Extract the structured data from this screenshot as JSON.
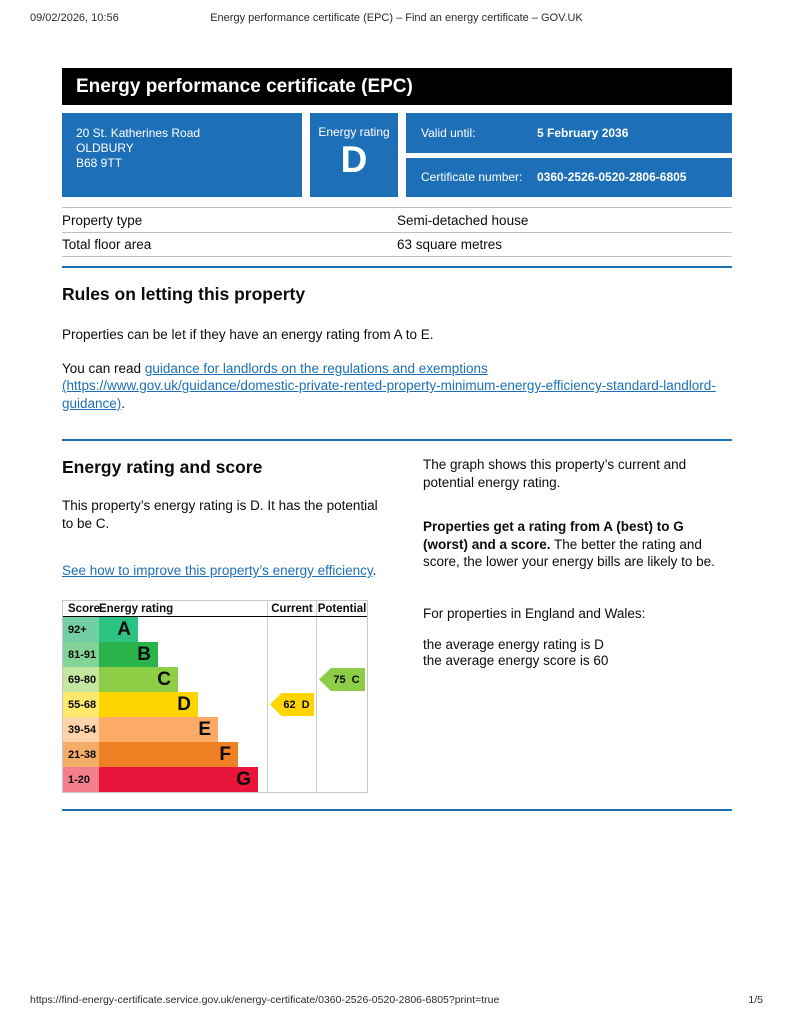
{
  "meta": {
    "datetime": "09/02/2026, 10:56",
    "page_title": "Energy performance certificate (EPC) – Find an energy certificate – GOV.UK"
  },
  "banner": {
    "title": "Energy performance certificate (EPC)"
  },
  "summary": {
    "box_color": "#1d70b8",
    "address_line1": "20 St. Katherines Road",
    "address_line2": "OLDBURY",
    "address_line3": "B68 9TT",
    "energy_rating_label": "Energy rating",
    "energy_rating_value": "D",
    "valid_until_label": "Valid until:",
    "valid_until_value": "5 February 2036",
    "certificate_number_label": "Certificate number:",
    "certificate_number_value": "0360-2526-0520-2806-6805"
  },
  "property": {
    "rows": [
      {
        "label": "Property type",
        "value": "Semi-detached house"
      },
      {
        "label": "Total floor area",
        "value": "63 square metres"
      }
    ]
  },
  "rules": {
    "heading": "Rules on letting this property",
    "paragraph1": "Properties can be let if they have an energy rating from A to E.",
    "paragraph2_prefix": "You can read ",
    "paragraph2_link": "guidance for landlords on the regulations and exemptions (https://www.gov.uk/guidance/domestic-private-rented-property-minimum-energy-efficiency-standard-landlord-guidance)",
    "paragraph2_suffix": "."
  },
  "rating_section": {
    "heading": "Energy rating and score",
    "paragraph1": "This property’s energy rating is D. It has the potential to be C.",
    "link_text": "See how to improve this property’s energy efficiency",
    "link_suffix": ".",
    "right_paragraph1": "The graph shows this property’s current and potential energy rating.",
    "right_paragraph2_bold": "Properties get a rating from A (best) to G (worst) and a score.",
    "right_paragraph2_rest": " The better the rating and score, the lower your energy bills are likely to be.",
    "right_paragraph3": "For properties in England and Wales:",
    "right_line1": "the average energy rating is D",
    "right_line2": "the average energy score is 60"
  },
  "chart_data": {
    "type": "epc-rating-graph",
    "headers": [
      "Score",
      "Energy rating",
      "Current",
      "Potential"
    ],
    "bands": [
      {
        "score": "92+",
        "letter": "A",
        "color": "#2cc282",
        "tint": "#72cfa4"
      },
      {
        "score": "81-91",
        "letter": "B",
        "color": "#2ab34a",
        "tint": "#82d395"
      },
      {
        "score": "69-80",
        "letter": "C",
        "color": "#8dce46",
        "tint": "#c5e6a0"
      },
      {
        "score": "55-68",
        "letter": "D",
        "color": "#ffd500",
        "tint": "#ffe96d"
      },
      {
        "score": "39-54",
        "letter": "E",
        "color": "#fcaa65",
        "tint": "#fdd4a9"
      },
      {
        "score": "21-38",
        "letter": "F",
        "color": "#ef8023",
        "tint": "#f4ad66"
      },
      {
        "score": "1-20",
        "letter": "G",
        "color": "#e9153b",
        "tint": "#f27e8e"
      }
    ],
    "current": {
      "score": 62,
      "letter": "D",
      "color": "#ffd500"
    },
    "potential": {
      "score": 75,
      "letter": "C",
      "color": "#8dce46"
    }
  },
  "footer": {
    "url": "https://find-energy-certificate.service.gov.uk/energy-certificate/0360-2526-0520-2806-6805?print=true",
    "page": "1/5"
  }
}
